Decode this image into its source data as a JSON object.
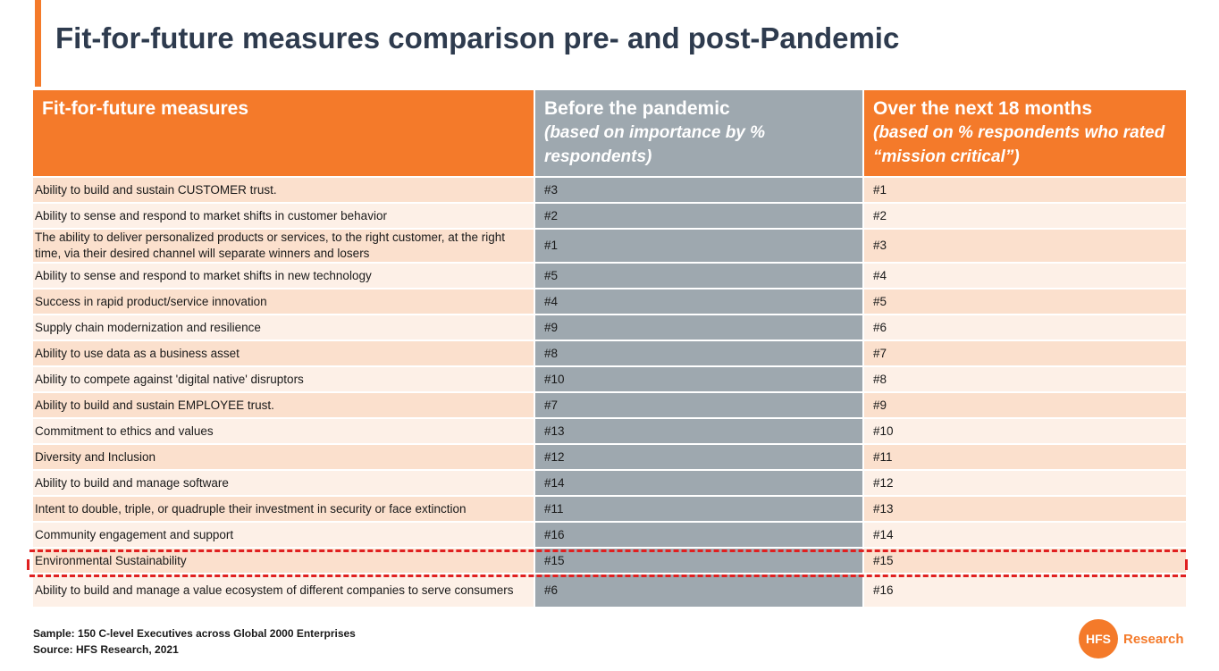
{
  "title": "Fit-for-future measures comparison pre- and post-Pandemic",
  "table": {
    "headers": [
      {
        "main": "Fit-for-future measures",
        "sub": ""
      },
      {
        "main": "Before the pandemic",
        "sub": "(based on importance by % respondents)"
      },
      {
        "main": "Over the next 18 months",
        "sub": "(based on % respondents who rated “mission critical”)"
      }
    ],
    "rows": [
      {
        "measure": "Ability to build and sustain CUSTOMER trust.",
        "before": "#3",
        "after": "#1"
      },
      {
        "measure": "Ability to sense and respond to market shifts in customer behavior",
        "before": "#2",
        "after": "#2"
      },
      {
        "measure": "The ability to deliver personalized products or services, to the right customer, at the right time, via their desired channel will separate winners and losers",
        "before": "#1",
        "after": "#3"
      },
      {
        "measure": "Ability to sense and respond to market shifts in new technology",
        "before": "#5",
        "after": "#4"
      },
      {
        "measure": "Success in rapid product/service innovation",
        "before": "#4",
        "after": "#5"
      },
      {
        "measure": "Supply chain modernization and resilience",
        "before": "#9",
        "after": "#6"
      },
      {
        "measure": "Ability to use data as a business asset",
        "before": "#8",
        "after": "#7"
      },
      {
        "measure": "Ability to compete against 'digital native' disruptors",
        "before": "#10",
        "after": "#8"
      },
      {
        "measure": "Ability to build and sustain EMPLOYEE trust.",
        "before": "#7",
        "after": "#9"
      },
      {
        "measure": "Commitment to ethics and values",
        "before": "#13",
        "after": "#10"
      },
      {
        "measure": "Diversity and Inclusion",
        "before": "#12",
        "after": "#11"
      },
      {
        "measure": "Ability to build and manage software",
        "before": "#14",
        "after": "#12"
      },
      {
        "measure": "Intent to double, triple, or quadruple their investment in security or face extinction",
        "before": "#11",
        "after": "#13"
      },
      {
        "measure": "Community engagement and support",
        "before": "#16",
        "after": "#14"
      },
      {
        "measure": "Environmental Sustainability",
        "before": "#15",
        "after": "#15"
      },
      {
        "measure": "Ability to build and manage a value ecosystem of different companies to serve consumers",
        "before": "#6",
        "after": "#16"
      }
    ]
  },
  "footer": {
    "sample": "Sample: 150 C-level Executives across  Global 2000 Enterprises",
    "source": "Source:  HFS Research, 2021"
  },
  "logo": {
    "mark": "HFS",
    "text": "Research"
  },
  "colors": {
    "accent": "#F47A2A",
    "gray": "#9EA8AF",
    "title": "#2E3B4E",
    "highlight": "#E02020"
  }
}
